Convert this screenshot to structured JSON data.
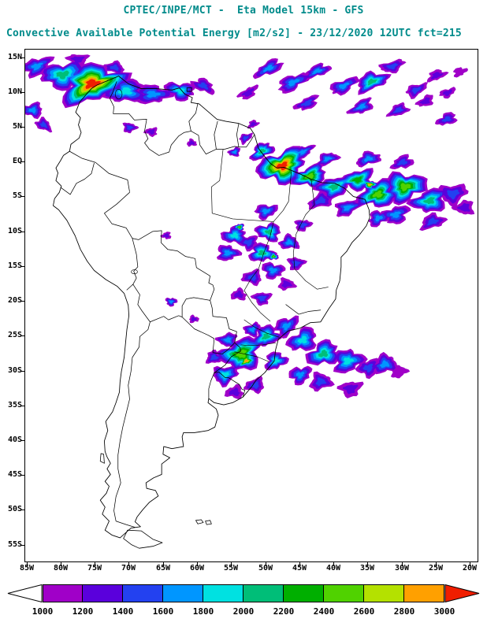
{
  "header": {
    "line1": "CPTEC/INPE/MCT -  Eta Model 15km - GFS",
    "line2": "Convective Available Potential Energy [m2/s2] - 23/12/2020 12UTC fct=215",
    "color": "#008B8B"
  },
  "map": {
    "lat_ticks": [
      {
        "label": "15N",
        "deg": 15
      },
      {
        "label": "10N",
        "deg": 10
      },
      {
        "label": "5N",
        "deg": 5
      },
      {
        "label": "EQ",
        "deg": 0
      },
      {
        "label": "5S",
        "deg": -5
      },
      {
        "label": "10S",
        "deg": -10
      },
      {
        "label": "15S",
        "deg": -15
      },
      {
        "label": "20S",
        "deg": -20
      },
      {
        "label": "25S",
        "deg": -25
      },
      {
        "label": "30S",
        "deg": -30
      },
      {
        "label": "35S",
        "deg": -35
      },
      {
        "label": "40S",
        "deg": -40
      },
      {
        "label": "45S",
        "deg": -45
      },
      {
        "label": "50S",
        "deg": -50
      },
      {
        "label": "55S",
        "deg": -55
      }
    ],
    "lon_ticks": [
      {
        "label": "85W",
        "deg": -85
      },
      {
        "label": "80W",
        "deg": -80
      },
      {
        "label": "75W",
        "deg": -75
      },
      {
        "label": "70W",
        "deg": -70
      },
      {
        "label": "65W",
        "deg": -65
      },
      {
        "label": "60W",
        "deg": -60
      },
      {
        "label": "55W",
        "deg": -55
      },
      {
        "label": "50W",
        "deg": -50
      },
      {
        "label": "45W",
        "deg": -45
      },
      {
        "label": "40W",
        "deg": -40
      },
      {
        "label": "35W",
        "deg": -35
      },
      {
        "label": "30W",
        "deg": -30
      },
      {
        "label": "25W",
        "deg": -25
      },
      {
        "label": "20W",
        "deg": -20
      }
    ]
  },
  "colorbar": {
    "labels": [
      "1000",
      "1200",
      "1400",
      "1600",
      "1800",
      "2000",
      "2200",
      "2400",
      "2600",
      "2800",
      "3000"
    ]
  },
  "chart_data": {
    "type": "heatmap",
    "title": "Convective Available Potential Energy [m2/s2]",
    "source": "CPTEC/INPE/MCT - Eta Model 15km - GFS",
    "valid": "23/12/2020 12UTC fct=215",
    "units": "m2/s2",
    "lon_range": [
      -85,
      -20
    ],
    "lat_range": [
      -55,
      15
    ],
    "levels": [
      1000,
      1200,
      1400,
      1600,
      1800,
      2000,
      2200,
      2400,
      2600,
      2800,
      3000
    ],
    "palette": [
      "#A000C8",
      "#5A00DC",
      "#2341F0",
      "#0096FF",
      "#00E1E1",
      "#00BE78",
      "#00AF00",
      "#50D200",
      "#B4E100",
      "#FFA000"
    ],
    "under_color": "#FFFFFF",
    "over_color": "#F01E00",
    "regions_format": [
      "lon",
      "lat",
      "rx_deg",
      "ry_deg",
      "rotation_deg",
      "peak_cape"
    ],
    "regions": [
      [
        -75.5,
        11.3,
        4.6,
        2.6,
        -15,
        3200
      ],
      [
        -79.8,
        12.6,
        3.2,
        1.8,
        -10,
        2200
      ],
      [
        -70.6,
        10.2,
        3,
        1.6,
        -5,
        2000
      ],
      [
        -66.6,
        9.8,
        2.6,
        1.3,
        0,
        1800
      ],
      [
        -62.6,
        10.3,
        2.2,
        1.2,
        10,
        2000
      ],
      [
        -59.2,
        11,
        1.7,
        0.9,
        20,
        1600
      ],
      [
        -83.6,
        13.8,
        2.2,
        1.2,
        -20,
        1800
      ],
      [
        -84.2,
        7.5,
        1.5,
        1,
        0,
        1800
      ],
      [
        -82.6,
        5.4,
        1.2,
        0.8,
        30,
        1600
      ],
      [
        -77.6,
        14.8,
        1.5,
        0.8,
        0,
        1400
      ],
      [
        -72.2,
        13.6,
        1.5,
        0.8,
        10,
        1600
      ],
      [
        -70,
        5,
        1,
        0.7,
        0,
        1600
      ],
      [
        -66.8,
        4.4,
        0.9,
        0.6,
        0,
        1400
      ],
      [
        -60.9,
        2.8,
        0.7,
        0.5,
        0,
        1400
      ],
      [
        -52.6,
        10,
        1.5,
        0.7,
        -30,
        1400
      ],
      [
        -49.6,
        13.5,
        2.2,
        0.9,
        -25,
        1800
      ],
      [
        -46,
        11.5,
        2.5,
        1,
        -25,
        1800
      ],
      [
        -44,
        8.5,
        1.8,
        0.8,
        -25,
        1600
      ],
      [
        -42.5,
        13.1,
        2,
        0.8,
        -20,
        1800
      ],
      [
        -38.6,
        11,
        2.2,
        0.9,
        -25,
        1800
      ],
      [
        -36,
        8,
        1.8,
        0.9,
        -25,
        1800
      ],
      [
        -34.5,
        11.6,
        2.4,
        1.2,
        -20,
        2200
      ],
      [
        -31.5,
        13.8,
        1.8,
        0.8,
        -15,
        1600
      ],
      [
        -30.6,
        7.5,
        1.5,
        0.8,
        -20,
        1600
      ],
      [
        -28,
        10.4,
        1.6,
        0.8,
        -25,
        1600
      ],
      [
        -26.6,
        8.8,
        1.3,
        0.7,
        -25,
        1400
      ],
      [
        -25,
        12.5,
        1.4,
        0.7,
        -20,
        1400
      ],
      [
        -23.4,
        10,
        1.2,
        0.6,
        -20,
        1400
      ],
      [
        -23.5,
        6.2,
        1.5,
        0.8,
        -20,
        1600
      ],
      [
        -21.6,
        13,
        1,
        0.6,
        -20,
        1200
      ],
      [
        -47.6,
        -0.5,
        3.6,
        2.2,
        -20,
        3200
      ],
      [
        -50.6,
        1.6,
        1.8,
        1,
        -30,
        2200
      ],
      [
        -44.6,
        1.5,
        1.6,
        0.8,
        -25,
        1800
      ],
      [
        -43.6,
        -2,
        2.6,
        1.4,
        -15,
        2600
      ],
      [
        -41,
        0.5,
        1.6,
        0.8,
        -20,
        1800
      ],
      [
        -40,
        -3.5,
        2.6,
        1.4,
        -15,
        2200
      ],
      [
        -42,
        -5.5,
        1.8,
        1,
        -20,
        1600
      ],
      [
        -38,
        -6.5,
        2,
        1,
        -20,
        1800
      ],
      [
        -36.6,
        -2.5,
        2.4,
        1.4,
        -10,
        2400
      ],
      [
        -35,
        0.5,
        1.8,
        0.9,
        -15,
        1800
      ],
      [
        -34.8,
        -3.2,
        1,
        0.6,
        0,
        3000
      ],
      [
        -33.6,
        -4.6,
        2.8,
        1.8,
        -15,
        2600
      ],
      [
        -33.5,
        -8,
        1.6,
        1,
        -20,
        1800
      ],
      [
        -31,
        -7.5,
        2,
        1.2,
        -15,
        1800
      ],
      [
        -30,
        0,
        1.6,
        0.9,
        -15,
        1600
      ],
      [
        -29.6,
        -3.5,
        3,
        2,
        -10,
        2600
      ],
      [
        -26,
        -5.5,
        2.6,
        1.6,
        -15,
        2200
      ],
      [
        -25.6,
        -8.5,
        1.8,
        1,
        -15,
        1600
      ],
      [
        -22.6,
        -4.5,
        2,
        1.4,
        -10,
        1600
      ],
      [
        -20.9,
        -6.5,
        1.4,
        1,
        0,
        1400
      ],
      [
        -53,
        3.5,
        1,
        0.6,
        -30,
        1600
      ],
      [
        -54.6,
        1.5,
        0.9,
        0.6,
        -20,
        1800
      ],
      [
        -51.9,
        5.5,
        0.8,
        0.5,
        -25,
        1400
      ],
      [
        -50,
        -7,
        1.6,
        1,
        -10,
        1800
      ],
      [
        -49.6,
        -10,
        1.8,
        1.2,
        5,
        2200
      ],
      [
        -50.6,
        -13,
        1.8,
        1.3,
        0,
        2200
      ],
      [
        -49,
        -15.5,
        1.6,
        1.1,
        10,
        1800
      ],
      [
        -54.6,
        -10.5,
        1.8,
        1.2,
        0,
        2000
      ],
      [
        -55.6,
        -13,
        1.6,
        1.1,
        0,
        1800
      ],
      [
        -52.6,
        -11.5,
        1.4,
        1,
        0,
        1600
      ],
      [
        -46.6,
        -11.5,
        1.4,
        1,
        0,
        1800
      ],
      [
        -45.6,
        -14.5,
        1.2,
        0.9,
        0,
        1600
      ],
      [
        -52,
        -16.5,
        1.4,
        1,
        0,
        1600
      ],
      [
        -47,
        -17.5,
        1.2,
        0.8,
        0,
        1400
      ],
      [
        -50.6,
        -19.5,
        1.3,
        0.9,
        0,
        1600
      ],
      [
        -54,
        -19,
        1.1,
        0.8,
        0,
        1400
      ],
      [
        -44.6,
        -9,
        1.2,
        0.8,
        -10,
        1600
      ],
      [
        -53.9,
        -9.3,
        0.7,
        0.5,
        0,
        2600
      ],
      [
        -48.9,
        -13.5,
        0.7,
        0.5,
        0,
        2600
      ],
      [
        -63.9,
        -20,
        0.8,
        0.6,
        0,
        1800
      ],
      [
        -64.6,
        -10.5,
        0.7,
        0.5,
        0,
        1400
      ],
      [
        -60.6,
        -22.5,
        0.7,
        0.5,
        0,
        1400
      ],
      [
        -53.6,
        -27.5,
        3,
        2.2,
        -20,
        2600
      ],
      [
        -52.9,
        -28.5,
        1.2,
        0.8,
        -20,
        3000
      ],
      [
        -56,
        -30.5,
        1.8,
        1.3,
        -15,
        2000
      ],
      [
        -55.6,
        -25.5,
        1.4,
        1,
        0,
        1800
      ],
      [
        -57.6,
        -28,
        1.2,
        0.9,
        0,
        1600
      ],
      [
        -52,
        -24,
        1.2,
        0.9,
        -20,
        1800
      ],
      [
        -50,
        -25,
        2,
        1.4,
        -25,
        2200
      ],
      [
        -47,
        -23.5,
        1.8,
        1.2,
        -30,
        1800
      ],
      [
        -44.6,
        -25.5,
        2.2,
        1.5,
        -25,
        2000
      ],
      [
        -48.6,
        -28.5,
        1.6,
        1.2,
        -20,
        2000
      ],
      [
        -45,
        -30.5,
        1.6,
        1.2,
        -15,
        1800
      ],
      [
        -41.6,
        -27.5,
        2.4,
        1.6,
        -20,
        2200
      ],
      [
        -38,
        -28.5,
        2.2,
        1.6,
        -15,
        2000
      ],
      [
        -35,
        -29.5,
        1.6,
        1.2,
        -15,
        1600
      ],
      [
        -32.6,
        -29,
        1.8,
        1.3,
        -15,
        1800
      ],
      [
        -30.6,
        -30,
        1.2,
        0.9,
        0,
        1200
      ],
      [
        -51.6,
        -32,
        1.4,
        1,
        -10,
        1600
      ],
      [
        -42,
        -31.5,
        1.6,
        1.2,
        -10,
        1600
      ],
      [
        -37.6,
        -32.5,
        1.6,
        1.1,
        -10,
        1400
      ],
      [
        -54.6,
        -33,
        1.3,
        0.9,
        0,
        1400
      ]
    ]
  }
}
